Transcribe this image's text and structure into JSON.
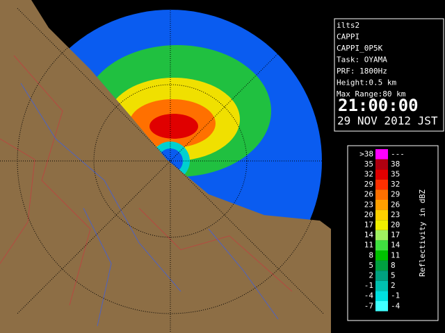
{
  "info": {
    "lines": [
      "ilts2",
      "CAPPI",
      "CAPPI_0P5K",
      "Task: OYAMA",
      "PRF: 1800Hz",
      "Height:0.5 km",
      "Max Range:80 km"
    ],
    "time": "21:00:00",
    "date": "29 NOV 2012 JST"
  },
  "legend": {
    "title": "Reflectivity in dBZ",
    "rows": [
      {
        "low": ">38",
        "high": "---",
        "color": "#ff00ff"
      },
      {
        "low": "35",
        "high": "38",
        "color": "#b00010"
      },
      {
        "low": "32",
        "high": "35",
        "color": "#e00000"
      },
      {
        "low": "29",
        "high": "32",
        "color": "#ff3000"
      },
      {
        "low": "26",
        "high": "29",
        "color": "#ff7000"
      },
      {
        "low": "23",
        "high": "26",
        "color": "#ffa000"
      },
      {
        "low": "20",
        "high": "23",
        "color": "#ffd000"
      },
      {
        "low": "17",
        "high": "20",
        "color": "#f0f000"
      },
      {
        "low": "14",
        "high": "17",
        "color": "#a0f060"
      },
      {
        "low": "11",
        "high": "14",
        "color": "#40e040"
      },
      {
        "low": "8",
        "high": "11",
        "color": "#00c000"
      },
      {
        "low": "5",
        "high": "8",
        "color": "#00a040"
      },
      {
        "low": "2",
        "high": "5",
        "color": "#00a080"
      },
      {
        "low": "-1",
        "high": "2",
        "color": "#00c0b0"
      },
      {
        "low": "-4",
        "high": "-1",
        "color": "#00e0e0"
      },
      {
        "low": "-7",
        "high": "-4",
        "color": "#40ffff"
      }
    ]
  }
}
